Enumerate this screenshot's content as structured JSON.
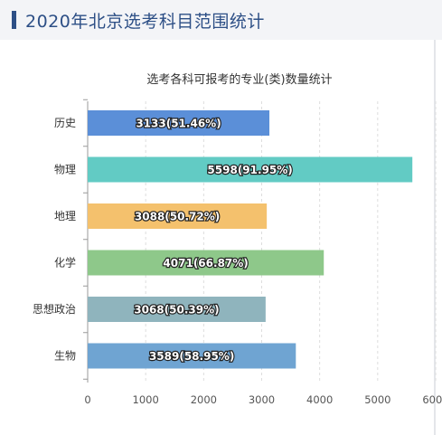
{
  "header": {
    "title": "2020年北京选考科目范围统计"
  },
  "chart_data": {
    "type": "bar",
    "orientation": "horizontal",
    "title": "选考各科可报考的专业(类)数量统计",
    "categories": [
      "历史",
      "物理",
      "地理",
      "化学",
      "思想政治",
      "生物"
    ],
    "values": [
      3133,
      5598,
      3088,
      4071,
      3068,
      3589
    ],
    "data_labels": [
      "3133(51.46%)",
      "5598(91.95%)",
      "3088(50.72%)",
      "4071(66.87%)",
      "3068(50.39%)",
      "3589(58.95%)"
    ],
    "colors": [
      "#5b8fd8",
      "#62cbc4",
      "#f4c16d",
      "#8ec88a",
      "#8fb4bd",
      "#6fa4d2"
    ],
    "xlim": [
      0,
      6000
    ],
    "xticks": [
      0,
      1000,
      2000,
      3000,
      4000,
      5000,
      6000
    ],
    "xtick_labels": [
      "0",
      "1000",
      "2000",
      "3000",
      "4000",
      "5000",
      "6000"
    ],
    "xlabel": "",
    "ylabel": "",
    "grid": true
  }
}
